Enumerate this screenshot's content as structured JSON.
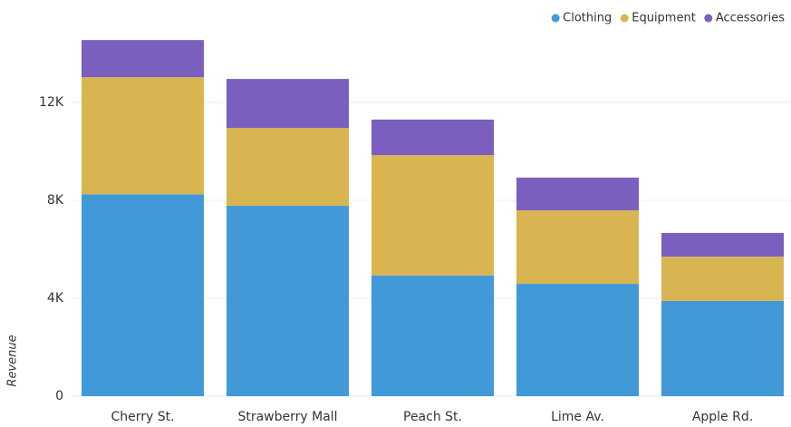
{
  "chart_data": {
    "type": "stacked_bar",
    "y_label": "Revenue",
    "categories": [
      "Cherry St.",
      "Strawberry Mall",
      "Peach St.",
      "Lime Av.",
      "Apple Rd."
    ],
    "series": [
      {
        "name": "Clothing",
        "color": "#4299d8",
        "values": [
          8250,
          7780,
          4930,
          4590,
          3890
        ]
      },
      {
        "name": "Equipment",
        "color": "#d9b552",
        "values": [
          4780,
          3180,
          4920,
          3000,
          1810
        ]
      },
      {
        "name": "Accessories",
        "color": "#7b5fbf",
        "values": [
          1520,
          2000,
          1450,
          1340,
          970
        ]
      }
    ],
    "ylim": [
      0,
      15000
    ],
    "yticks": [
      0,
      {
        "value": 4000,
        "label": "4K"
      },
      {
        "value": 8000,
        "label": "8K"
      },
      {
        "value": 12000,
        "label": "12K"
      }
    ],
    "grid": true,
    "legend": "top-right"
  }
}
